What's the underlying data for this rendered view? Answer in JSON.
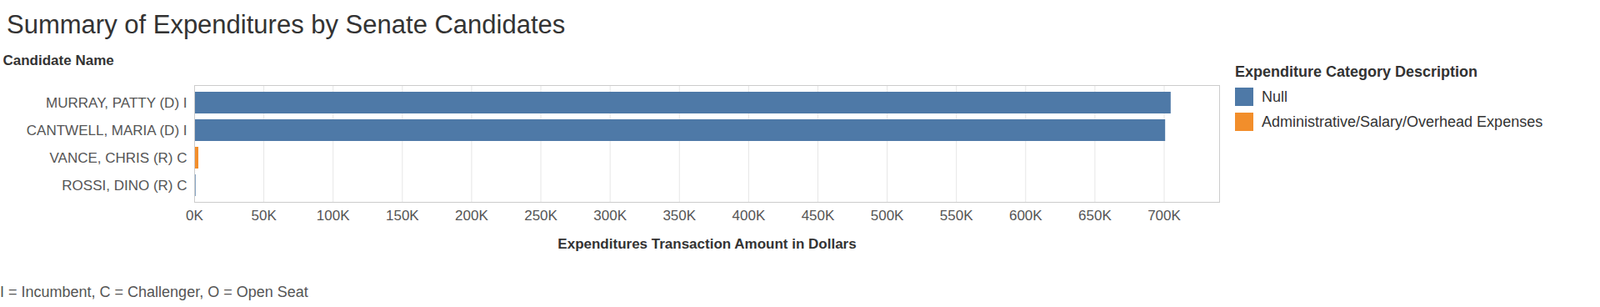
{
  "chart_data": {
    "type": "bar",
    "orientation": "horizontal",
    "title": "Summary of Expenditures by Senate Candidates",
    "ylabel": "Candidate Name",
    "xlabel": "Expenditures Transaction Amount in Dollars",
    "legend_title": "Expenditure Category Description",
    "caption": "I = Incumbent, C = Challenger, O = Open Seat",
    "categories": [
      "MURRAY, PATTY (D) I",
      "CANTWELL, MARIA (D) I",
      "VANCE, CHRIS (R) C",
      "ROSSI, DINO (R) C"
    ],
    "series": [
      {
        "name": "Null",
        "color": "#4e79a7",
        "values": [
          705000,
          701000,
          null,
          1000
        ]
      },
      {
        "name": "Administrative/Salary/Overhead Expenses",
        "color": "#f28e2b",
        "values": [
          null,
          null,
          3000,
          null
        ]
      }
    ],
    "xlim": [
      0,
      740000
    ],
    "xticks": [
      {
        "value": 0,
        "label": "0K"
      },
      {
        "value": 50000,
        "label": "50K"
      },
      {
        "value": 100000,
        "label": "100K"
      },
      {
        "value": 150000,
        "label": "150K"
      },
      {
        "value": 200000,
        "label": "200K"
      },
      {
        "value": 250000,
        "label": "250K"
      },
      {
        "value": 300000,
        "label": "300K"
      },
      {
        "value": 350000,
        "label": "350K"
      },
      {
        "value": 400000,
        "label": "400K"
      },
      {
        "value": 450000,
        "label": "450K"
      },
      {
        "value": 500000,
        "label": "500K"
      },
      {
        "value": 550000,
        "label": "550K"
      },
      {
        "value": 600000,
        "label": "600K"
      },
      {
        "value": 650000,
        "label": "650K"
      },
      {
        "value": 700000,
        "label": "700K"
      }
    ],
    "grid": true,
    "legend": "right"
  }
}
